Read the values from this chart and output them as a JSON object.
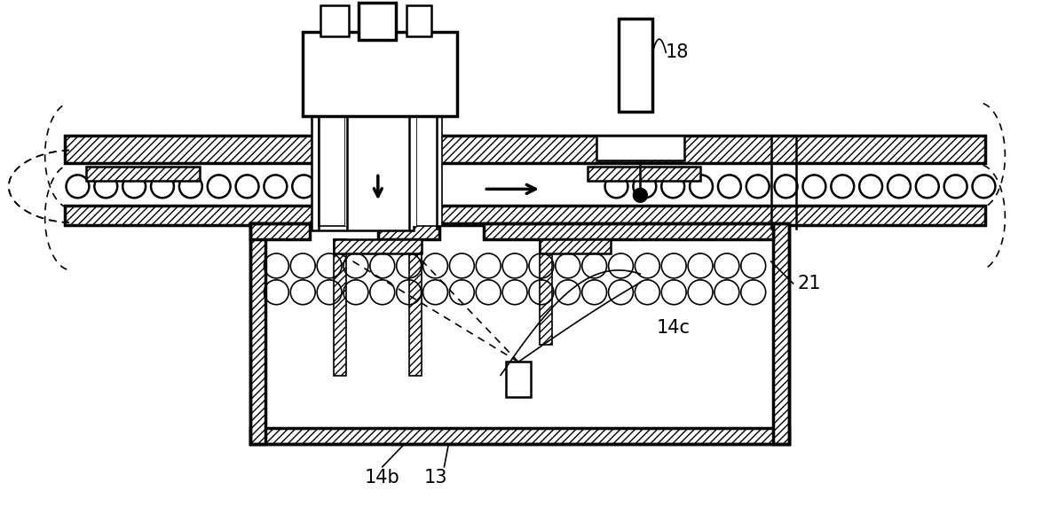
{
  "bg_color": "#ffffff",
  "figsize": [
    11.83,
    5.71
  ],
  "dpi": 100,
  "lw_thick": 2.5,
  "lw_med": 1.8,
  "lw_thin": 1.2,
  "label_fontsize": 15
}
